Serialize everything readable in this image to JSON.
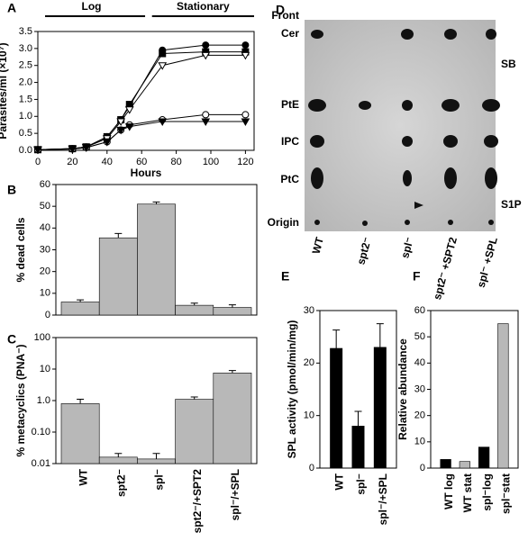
{
  "chart_data": [
    {
      "type": "line",
      "panel": "A",
      "annotations": [
        "Log",
        "Stationary"
      ],
      "xlabel": "Hours",
      "ylabel": "Parasites/ml (×10⁷)",
      "x": [
        0,
        20,
        28,
        40,
        48,
        53,
        72,
        97,
        120
      ],
      "xlim": [
        0,
        125
      ],
      "xticks": [
        0,
        20,
        40,
        60,
        80,
        100,
        120
      ],
      "ylim": [
        0,
        3.5
      ],
      "yticks": [
        {
          "value": 0,
          "label": "0.0"
        },
        0.5,
        {
          "value": 1,
          "label": "1.0"
        },
        1.5,
        {
          "value": 2,
          "label": "2.0"
        },
        2.5,
        {
          "value": 3,
          "label": "3.0"
        },
        3.5
      ],
      "series": [
        {
          "color": "#000000",
          "marker": "circle",
          "filled": true,
          "values": [
            0.02,
            0.05,
            0.1,
            0.4,
            0.9,
            1.3,
            2.95,
            3.1,
            3.1
          ]
        },
        {
          "color": "#000000",
          "marker": "square",
          "filled": true,
          "values": [
            0.02,
            0.05,
            0.1,
            0.4,
            0.9,
            1.35,
            2.85,
            2.9,
            2.9
          ]
        },
        {
          "color": "#000000",
          "marker": "triangle-down",
          "filled": false,
          "values": [
            0.02,
            0.05,
            0.1,
            0.35,
            0.85,
            1.2,
            2.5,
            2.8,
            2.8
          ]
        },
        {
          "color": "#000000",
          "marker": "circle",
          "filled": false,
          "values": [
            0.02,
            0.04,
            0.08,
            0.25,
            0.6,
            0.75,
            0.9,
            1.05,
            1.05
          ]
        },
        {
          "color": "#000000",
          "marker": "triangle-down",
          "filled": true,
          "values": [
            0.02,
            0.04,
            0.08,
            0.25,
            0.6,
            0.7,
            0.85,
            0.85,
            0.85
          ]
        }
      ]
    },
    {
      "type": "bar",
      "panel": "B",
      "ylabel": "% dead cells",
      "values": [
        6,
        35.5,
        51,
        4.5,
        3.5
      ],
      "errors": [
        1,
        2,
        1,
        1,
        1.2
      ],
      "color": "#b8b8b8",
      "ylim": [
        0,
        60
      ],
      "yticks": [
        0,
        10,
        20,
        30,
        40,
        50,
        60
      ]
    },
    {
      "type": "bar",
      "panel": "C",
      "ylabel": "% metacyclics (PNA⁻)",
      "log": true,
      "categories": [
        "WT",
        "spt2⁻",
        "spl⁻",
        "spt2⁻/+SPT2",
        "spl⁻/+SPL"
      ],
      "values": [
        0.8,
        0.016,
        0.014,
        1.1,
        7.5
      ],
      "errors": [
        0.3,
        0.005,
        0.007,
        0.2,
        1.5
      ],
      "color": "#b8b8b8",
      "ylim": [
        0.01,
        100
      ],
      "yticks": [
        0.01,
        {
          "value": 0.1,
          "label": "0.10"
        },
        {
          "value": 1,
          "label": "1.0"
        },
        10,
        100
      ]
    },
    {
      "type": "bar",
      "panel": "E",
      "ylabel": "SPL activity (pmol/min/mg)",
      "categories": [
        "WT",
        "spl⁻",
        "spl⁻/+SPL"
      ],
      "values": [
        22.8,
        8,
        23
      ],
      "errors": [
        3.5,
        2.8,
        4.5
      ],
      "color": "#000000",
      "ylim": [
        0,
        30
      ],
      "yticks": [
        0,
        10,
        20,
        30
      ]
    },
    {
      "type": "bar",
      "panel": "F",
      "ylabel": "Relative abundance",
      "categories": [
        "WT log",
        "WT stat",
        "spl⁻log",
        "spl⁻stat"
      ],
      "values": [
        3.3,
        2.5,
        8,
        55
      ],
      "colors": [
        "#000000",
        "#b8b8b8",
        "#000000",
        "#b8b8b8"
      ],
      "ylim": [
        0,
        60
      ],
      "yticks": [
        0,
        10,
        20,
        30,
        40,
        50,
        60
      ]
    }
  ],
  "tlc": {
    "panel": "D",
    "bands": [
      "Front",
      "Cer",
      "PtE",
      "IPC",
      "PtC",
      "Origin"
    ],
    "right_labels": [
      "SB",
      "S1P"
    ],
    "lanes": [
      "WT",
      "spt2⁻",
      "spl⁻",
      "spt2⁻ +SPT2",
      "spl⁻ +SPL"
    ]
  }
}
